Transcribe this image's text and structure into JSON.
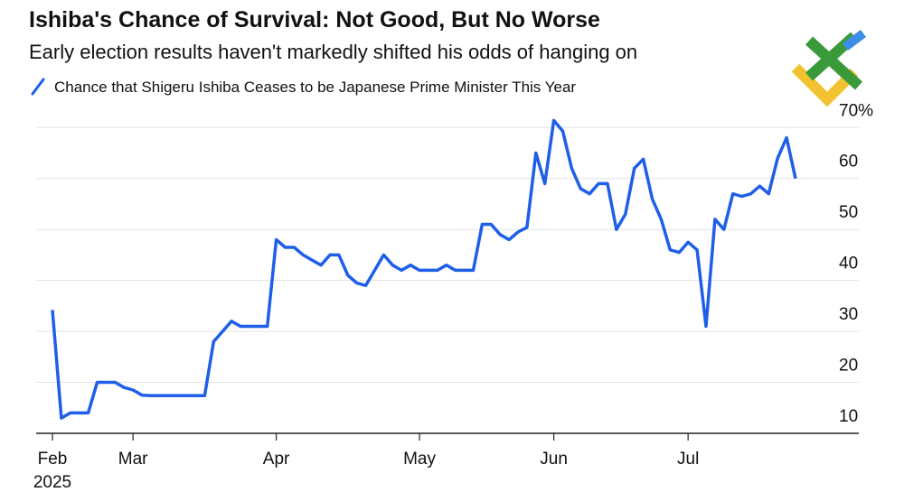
{
  "chart_data": {
    "type": "line",
    "title": "Ishiba's Chance of Survival: Not Good, But No Worse",
    "subtitle": "Early election results haven't markedly shifted his odds of hanging on",
    "year_label": "2025",
    "categories": [
      "Feb",
      null,
      null,
      null,
      null,
      null,
      null,
      null,
      null,
      "Mar",
      null,
      null,
      null,
      null,
      null,
      null,
      null,
      null,
      null,
      null,
      null,
      null,
      null,
      null,
      null,
      "Apr",
      null,
      null,
      null,
      null,
      null,
      null,
      null,
      null,
      null,
      null,
      null,
      null,
      null,
      null,
      null,
      "May",
      null,
      null,
      null,
      null,
      null,
      null,
      null,
      null,
      null,
      null,
      null,
      null,
      null,
      null,
      "Jun",
      null,
      null,
      null,
      null,
      null,
      null,
      null,
      null,
      null,
      null,
      null,
      null,
      null,
      null,
      "Jul",
      null,
      null,
      null,
      null,
      null,
      null,
      null,
      null,
      null,
      null,
      null,
      null
    ],
    "series": [
      {
        "name": "Chance that Shigeru Ishiba Ceases to be Japanese Prime Minister This Year",
        "color": "#1f5fe8",
        "values": [
          34.2,
          13,
          14,
          14,
          14,
          20,
          20,
          20,
          19,
          18.5,
          17.5,
          17.4,
          17.4,
          17.4,
          17.4,
          17.4,
          17.4,
          17.4,
          28,
          30,
          32,
          31,
          31,
          31,
          31,
          48,
          46.5,
          46.5,
          45,
          44,
          43,
          45,
          45,
          41,
          39.5,
          39,
          42,
          45,
          43,
          42,
          43,
          42,
          42,
          42,
          43,
          42,
          42,
          42,
          51,
          51,
          49,
          48,
          49.5,
          50.4,
          65,
          59,
          71.4,
          69.3,
          62,
          58,
          57,
          59,
          59,
          50,
          53,
          62,
          63.8,
          56,
          52,
          46,
          45.5,
          47.5,
          46,
          31,
          52,
          50,
          57,
          56.5,
          57,
          58.5,
          57,
          64,
          68,
          60
        ]
      }
    ],
    "ylim": [
      10,
      72
    ],
    "yticks": [
      10,
      20,
      30,
      40,
      50,
      60,
      {
        "value": 70,
        "label": "70%"
      }
    ],
    "grid": true
  }
}
